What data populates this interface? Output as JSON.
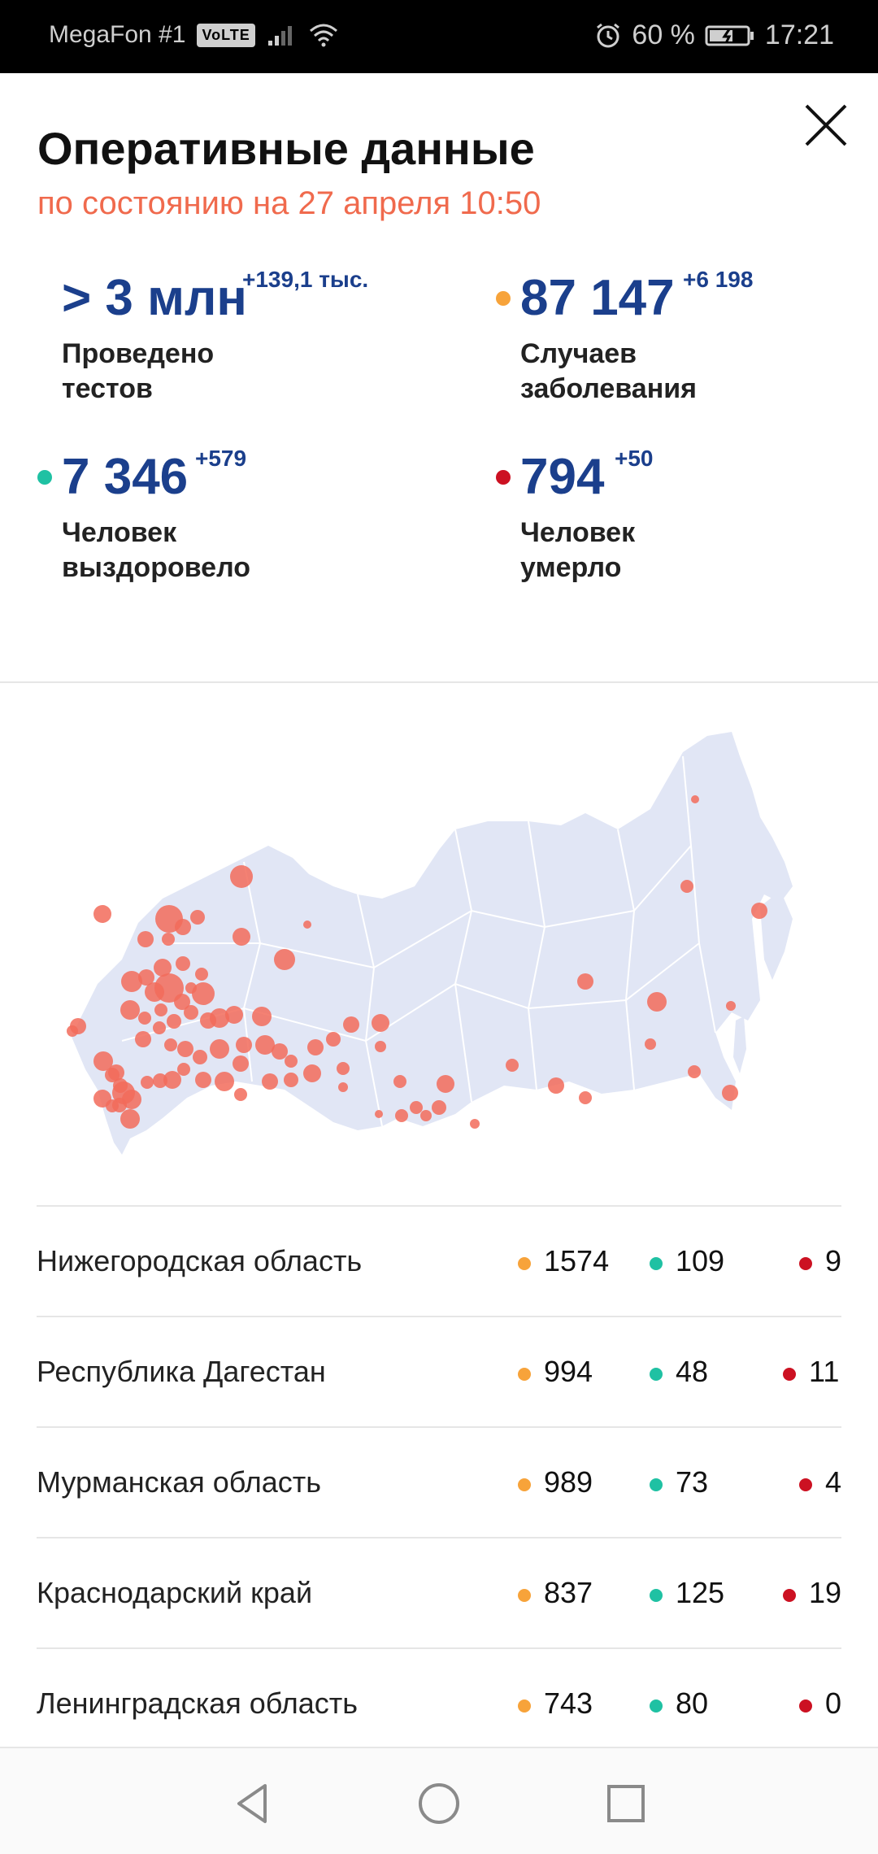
{
  "status_bar": {
    "carrier": "MegaFon #1",
    "volte": "VoLTE",
    "battery": "60 %",
    "time": "17:21"
  },
  "header": {
    "title": "Оперативные данные",
    "subtitle": "по состоянию на 27 апреля 10:50"
  },
  "stats": {
    "tests": {
      "value": "> 3 млн",
      "delta": "+139,1 тыс.",
      "label_line1": "Проведено",
      "label_line2": "тестов"
    },
    "cases": {
      "value": "87 147",
      "delta": "+6 198",
      "label_line1": "Случаев",
      "label_line2": "заболевания"
    },
    "recovered": {
      "value": "7 346",
      "delta": "+579",
      "label_line1": "Человек",
      "label_line2": "выздоровело"
    },
    "deaths": {
      "value": "794",
      "delta": "+50",
      "label_line1": "Человек",
      "label_line2": "умерло"
    }
  },
  "colors": {
    "cases": "#f7a33a",
    "recovered": "#1fc1a3",
    "deaths": "#cc1122",
    "accent": "#f06a4d",
    "number": "#1b3f8c",
    "map_land": "#e1e6f5",
    "map_bubble": "#f26b5b"
  },
  "regions": [
    {
      "name": "Нижегородская область",
      "cases": "1574",
      "recovered": "109",
      "deaths": "9"
    },
    {
      "name": "Республика Дагестан",
      "cases": "994",
      "recovered": "48",
      "deaths": "11"
    },
    {
      "name": "Мурманская область",
      "cases": "989",
      "recovered": "73",
      "deaths": "4"
    },
    {
      "name": "Краснодарский край",
      "cases": "837",
      "recovered": "125",
      "deaths": "19"
    },
    {
      "name": "Ленинградская область",
      "cases": "743",
      "recovered": "80",
      "deaths": "0"
    }
  ],
  "icons": {
    "close": "close-icon",
    "back": "back-icon",
    "home": "home-icon",
    "recents": "recents-icon"
  }
}
